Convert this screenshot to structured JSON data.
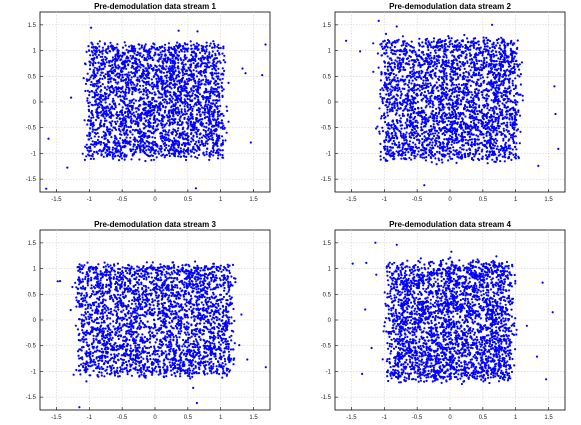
{
  "chart_data": [
    {
      "type": "scatter",
      "title": "Pre-demodulation data stream 1",
      "xlim": [
        -1.75,
        1.75
      ],
      "ylim": [
        -1.75,
        1.75
      ],
      "xticks": [
        "-1.5",
        "-1",
        "-0.5",
        "0",
        "0.5",
        "1",
        "1.5"
      ],
      "yticks": [
        "1.5",
        "1",
        "0.5",
        "0",
        "-0.5",
        "-1",
        "-1.5"
      ],
      "grid": true,
      "marker_color": "#0000ff",
      "cluster": {
        "x_range": [
          -1.1,
          1.1
        ],
        "y_range": [
          -1.15,
          1.2
        ],
        "shape": "square",
        "approx_points": 3000
      }
    },
    {
      "type": "scatter",
      "title": "Pre-demodulation data stream 2",
      "xlim": [
        -1.75,
        1.75
      ],
      "ylim": [
        -1.75,
        1.75
      ],
      "xticks": [
        "-1.5",
        "-1",
        "-0.5",
        "0",
        "0.5",
        "1",
        "1.5"
      ],
      "yticks": [
        "1.5",
        "1",
        "0.5",
        "0",
        "-0.5",
        "-1",
        "-1.5"
      ],
      "grid": true,
      "marker_color": "#0000ff",
      "cluster": {
        "x_range": [
          -1.1,
          1.1
        ],
        "y_range": [
          -1.2,
          1.3
        ],
        "shape": "square",
        "approx_points": 3000
      }
    },
    {
      "type": "scatter",
      "title": "Pre-demodulation data stream 3",
      "xlim": [
        -1.75,
        1.75
      ],
      "ylim": [
        -1.75,
        1.75
      ],
      "xticks": [
        "-1.5",
        "-1",
        "-0.5",
        "0",
        "0.5",
        "1",
        "1.5"
      ],
      "yticks": [
        "1.5",
        "1",
        "0.5",
        "0",
        "-0.5",
        "-1",
        "-1.5"
      ],
      "grid": true,
      "marker_color": "#0000ff",
      "cluster": {
        "x_range": [
          -1.25,
          1.25
        ],
        "y_range": [
          -1.15,
          1.15
        ],
        "shape": "square",
        "approx_points": 3000
      }
    },
    {
      "type": "scatter",
      "title": "Pre-demodulation data stream 4",
      "xlim": [
        -1.75,
        1.75
      ],
      "ylim": [
        -1.75,
        1.75
      ],
      "xticks": [
        "-1.5",
        "-1",
        "-0.5",
        "0",
        "0.5",
        "1",
        "1.5"
      ],
      "yticks": [
        "1.5",
        "1",
        "0.5",
        "0",
        "-0.5",
        "-1",
        "-1.5"
      ],
      "grid": true,
      "marker_color": "#0000ff",
      "cluster": {
        "x_range": [
          -1.0,
          1.0
        ],
        "y_range": [
          -1.25,
          1.2
        ],
        "shape": "square",
        "approx_points": 3000
      }
    }
  ]
}
